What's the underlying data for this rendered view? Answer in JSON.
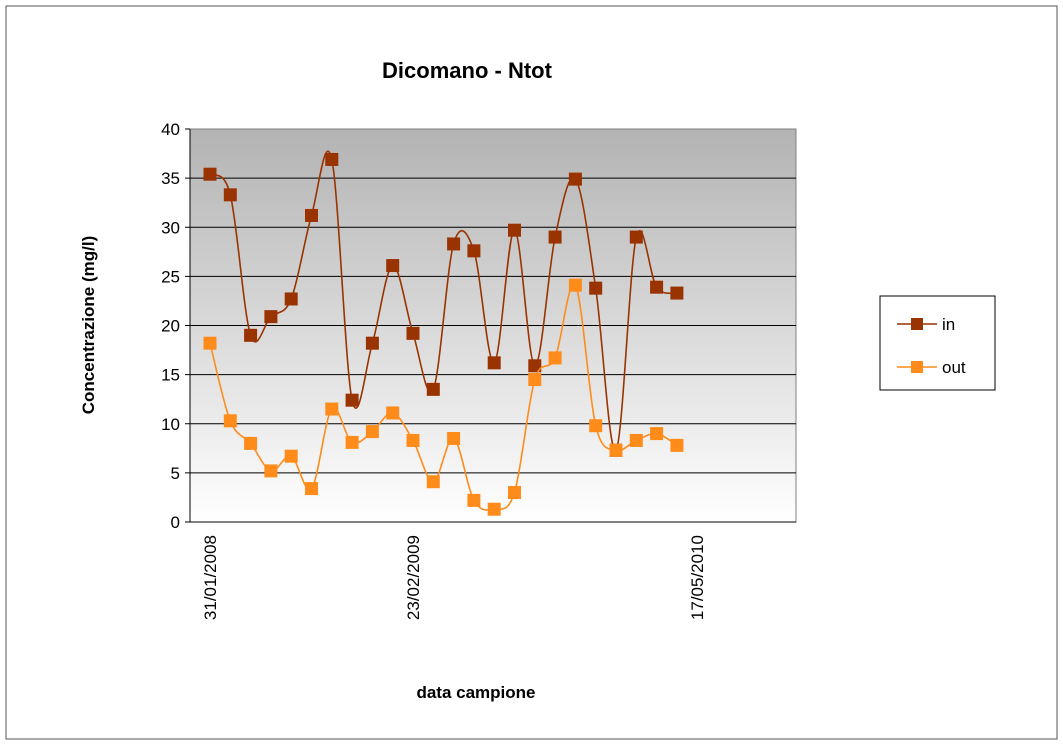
{
  "chart_data": {
    "type": "line",
    "title": "Dicomano - Ntot",
    "y_label": "Concentrazione (mg/l)",
    "x_label": "data campione",
    "categories": [
      "31/01/2008",
      null,
      null,
      null,
      null,
      null,
      null,
      null,
      null,
      null,
      "23/02/2009",
      null,
      null,
      null,
      null,
      null,
      null,
      null,
      null,
      null,
      null,
      null,
      null,
      null,
      "17/05/2010"
    ],
    "series": [
      {
        "name": "in",
        "color": "#993300",
        "values": [
          35.4,
          33.3,
          19,
          20.9,
          22.7,
          31.2,
          36.9,
          12.4,
          18.2,
          26.1,
          19.2,
          13.5,
          28.3,
          27.6,
          16.2,
          29.7,
          15.9,
          29,
          34.9,
          23.8,
          7.3,
          29,
          23.9,
          23.3,
          null
        ]
      },
      {
        "name": "out",
        "color": "#ff8c1a",
        "values": [
          18.2,
          10.3,
          8,
          5.2,
          6.7,
          3.4,
          11.5,
          8.1,
          9.2,
          11.1,
          8.3,
          4.1,
          8.5,
          2.2,
          1.3,
          3,
          14.5,
          16.7,
          24.1,
          9.8,
          7.3,
          8.3,
          9,
          7.8,
          null
        ]
      }
    ],
    "ylim": [
      0,
      40
    ],
    "yticks": [
      0,
      5,
      10,
      15,
      20,
      25,
      30,
      35,
      40
    ],
    "grid": true,
    "legend": "right"
  }
}
